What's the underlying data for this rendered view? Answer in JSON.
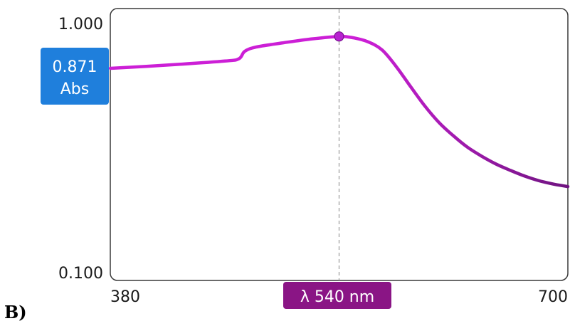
{
  "panel_label": "B)",
  "colors": {
    "curve_start": "#cc1fd6",
    "curve_end": "#6f1480",
    "marker": "#b722d0",
    "abs_badge": "#1f7fdc",
    "lambda_badge": "#8a1585",
    "guide": "#9a9a9a",
    "frame": "#3a3a3a"
  },
  "readout": {
    "abs_value": "0.871",
    "abs_unit": "Abs",
    "lambda_label": "λ 540 nm"
  },
  "chart_data": {
    "type": "line",
    "title": "",
    "xlabel": "",
    "ylabel": "",
    "x_ticks": [
      "380",
      "700"
    ],
    "y_ticks": [
      "1.000",
      "0.100"
    ],
    "xlim": [
      380,
      700
    ],
    "ylim": [
      0.1,
      1.0
    ],
    "y_scale": "log",
    "grid": false,
    "marker": {
      "x": 540,
      "y": 0.871
    },
    "series": [
      {
        "x": [
          380,
          420,
          460,
          470,
          474,
          482,
          500,
          520,
          540,
          550,
          560,
          570,
          580,
          590,
          600,
          610,
          620,
          630,
          640,
          650,
          660,
          670,
          680,
          690,
          700
        ],
        "y": [
          0.65,
          0.67,
          0.695,
          0.71,
          0.76,
          0.79,
          0.82,
          0.85,
          0.871,
          0.86,
          0.83,
          0.77,
          0.66,
          0.55,
          0.46,
          0.395,
          0.35,
          0.315,
          0.29,
          0.27,
          0.255,
          0.242,
          0.232,
          0.225,
          0.22
        ]
      }
    ]
  }
}
